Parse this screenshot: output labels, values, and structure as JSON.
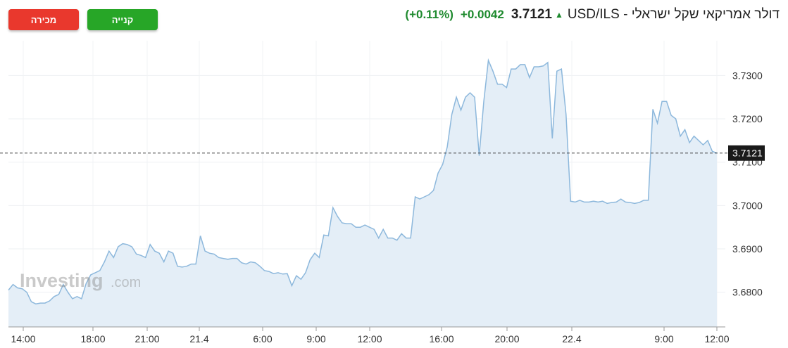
{
  "buttons": {
    "sell_label": "מכירה",
    "buy_label": "קנייה"
  },
  "header": {
    "title": "USD/ILS - דולר אמריקאי שקל ישראלי",
    "price": "3.7121",
    "change": "+0.0042",
    "change_pct": "(+0.11%)"
  },
  "watermark": {
    "brand": "Investing",
    "suffix": ".com"
  },
  "colors": {
    "line": "#8db8dc",
    "fill": "#e4eef7",
    "up": "#1e8a2e",
    "buy": "#27a627",
    "sell": "#e9382d"
  },
  "chart_data": {
    "type": "area",
    "y_ticks": [
      3.68,
      3.69,
      3.7,
      3.71,
      3.72,
      3.73
    ],
    "y_tick_labels": [
      "3.6800",
      "3.6900",
      "3.7000",
      "3.7100",
      "3.7200",
      "3.7300"
    ],
    "ylim": [
      3.672,
      3.738
    ],
    "x_tick_labels": [
      "14:00",
      "18:00",
      "21:00",
      "21.4",
      "6:00",
      "9:00",
      "12:00",
      "16:00",
      "20:00",
      "22.4",
      "9:00",
      "12:00"
    ],
    "last_value": 3.7121,
    "last_value_label": "3.7121",
    "values": [
      3.6805,
      3.6818,
      3.681,
      3.6808,
      3.68,
      3.6778,
      3.6773,
      3.6775,
      3.6775,
      3.678,
      3.679,
      3.6795,
      3.6818,
      3.68,
      3.6785,
      3.679,
      3.6785,
      3.682,
      3.684,
      3.6845,
      3.685,
      3.687,
      3.6895,
      3.688,
      3.6905,
      3.6912,
      3.691,
      3.6905,
      3.6888,
      3.6885,
      3.688,
      3.691,
      3.6895,
      3.689,
      3.687,
      3.6895,
      3.689,
      3.686,
      3.6858,
      3.686,
      3.6865,
      3.6865,
      3.693,
      3.6895,
      3.689,
      3.6888,
      3.688,
      3.6878,
      3.6876,
      3.6878,
      3.6878,
      3.6868,
      3.6865,
      3.687,
      3.6868,
      3.686,
      3.685,
      3.6848,
      3.6843,
      3.6845,
      3.6842,
      3.6843,
      3.6815,
      3.6838,
      3.683,
      3.6845,
      3.6875,
      3.689,
      3.688,
      3.6932,
      3.693,
      3.6995,
      3.6975,
      3.696,
      3.6958,
      3.6958,
      3.695,
      3.695,
      3.6955,
      3.695,
      3.6945,
      3.6925,
      3.6945,
      3.6925,
      3.6925,
      3.692,
      3.6935,
      3.6925,
      3.6925,
      3.702,
      3.7015,
      3.702,
      3.7025,
      3.7035,
      3.7075,
      3.7095,
      3.7135,
      3.721,
      3.725,
      3.722,
      3.725,
      3.726,
      3.725,
      3.7115,
      3.724,
      3.7335,
      3.731,
      3.728,
      3.728,
      3.7272,
      3.7315,
      3.7315,
      3.7325,
      3.7325,
      3.7295,
      3.732,
      3.732,
      3.7322,
      3.733,
      3.7155,
      3.731,
      3.7315,
      3.721,
      3.701,
      3.7008,
      3.7012,
      3.7008,
      3.7008,
      3.701,
      3.7008,
      3.701,
      3.7005,
      3.7007,
      3.7008,
      3.7015,
      3.7008,
      3.7007,
      3.7005,
      3.7007,
      3.7012,
      3.7012,
      3.7222,
      3.719,
      3.724,
      3.724,
      3.7208,
      3.72,
      3.716,
      3.7175,
      3.7145,
      3.716,
      3.715,
      3.714,
      3.715,
      3.7125,
      3.7121
    ]
  }
}
